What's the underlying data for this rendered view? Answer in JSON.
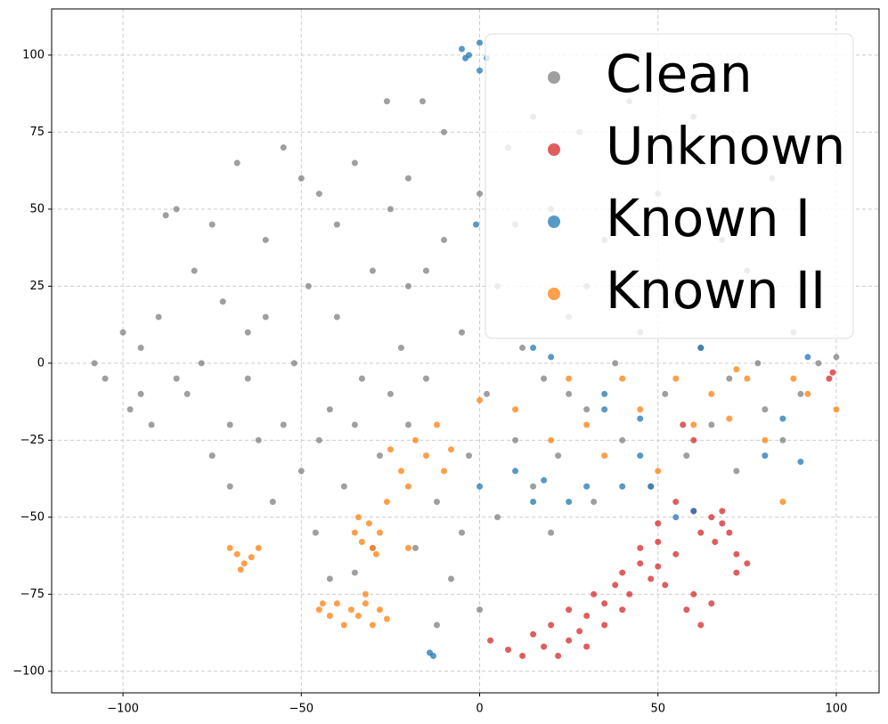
{
  "chart_data": {
    "type": "scatter",
    "xlim": [
      -120,
      112
    ],
    "ylim": [
      -107,
      115
    ],
    "xticks": [
      {
        "value": -100,
        "label": "−100"
      },
      {
        "value": -50,
        "label": "−50"
      },
      0,
      50,
      100
    ],
    "yticks": [
      {
        "value": -100,
        "label": "−100"
      },
      {
        "value": -75,
        "label": "−75"
      },
      {
        "value": -50,
        "label": "−50"
      },
      {
        "value": -25,
        "label": "−25"
      },
      0,
      25,
      50,
      75,
      100
    ],
    "grid": true,
    "legend": "upper right",
    "series": [
      {
        "name": "Clean",
        "color": "#7f7f7f",
        "x": [
          -108,
          -105,
          -100,
          -98,
          -95,
          -92,
          -90,
          -88,
          -85,
          -82,
          -80,
          -78,
          -75,
          -72,
          -70,
          -68,
          -65,
          -62,
          -60,
          -58,
          -55,
          -52,
          -50,
          -48,
          -46,
          -45,
          -42,
          -40,
          -38,
          -35,
          -33,
          -30,
          -28,
          -26,
          -25,
          -22,
          -20,
          -18,
          -16,
          -15,
          -12,
          -10,
          -8,
          -5,
          -3,
          0,
          0,
          2,
          5,
          5,
          8,
          10,
          12,
          15,
          15,
          18,
          20,
          22,
          25,
          28,
          30,
          32,
          35,
          38,
          40,
          42,
          45,
          48,
          50,
          52,
          55,
          58,
          60,
          62,
          65,
          68,
          70,
          72,
          75,
          78,
          80,
          82,
          85,
          88,
          90,
          95,
          100,
          -95,
          -85,
          -75,
          -70,
          -55,
          -45,
          -40,
          -35,
          -30,
          -25,
          -20,
          -10,
          -5,
          10,
          20,
          25,
          30,
          -60,
          -65,
          -50,
          -20,
          -15,
          -12,
          -42,
          -35
        ],
        "y": [
          0,
          -5,
          10,
          -15,
          5,
          -20,
          15,
          48,
          50,
          -10,
          30,
          0,
          -30,
          20,
          -40,
          65,
          10,
          -25,
          40,
          -45,
          70,
          0,
          -35,
          25,
          -55,
          55,
          -15,
          15,
          -40,
          65,
          -5,
          30,
          -30,
          85,
          50,
          5,
          -20,
          -60,
          85,
          30,
          -45,
          75,
          -70,
          10,
          -30,
          -80,
          55,
          -10,
          -50,
          25,
          70,
          -25,
          5,
          80,
          -40,
          -5,
          50,
          -30,
          15,
          75,
          -15,
          -45,
          40,
          0,
          -25,
          85,
          10,
          -40,
          55,
          -10,
          20,
          -30,
          80,
          5,
          -20,
          40,
          -5,
          -35,
          30,
          0,
          -15,
          60,
          -25,
          10,
          -10,
          0,
          2,
          -10,
          -5,
          45,
          -20,
          -20,
          -25,
          45,
          -20,
          -60,
          -10,
          60,
          40,
          -55,
          45,
          -55,
          -10,
          25,
          15,
          -5,
          60,
          25,
          -5,
          -85,
          -70,
          -68
        ]
      },
      {
        "name": "Unknown",
        "color": "#d62728",
        "x": [
          3,
          8,
          12,
          15,
          18,
          20,
          22,
          25,
          25,
          28,
          30,
          30,
          32,
          35,
          35,
          38,
          40,
          40,
          42,
          45,
          45,
          48,
          50,
          50,
          52,
          55,
          50,
          60,
          62,
          65,
          66,
          68,
          70,
          72,
          72,
          75,
          60,
          58,
          62,
          65,
          68,
          99,
          98,
          55,
          57,
          60
        ],
        "y": [
          -90,
          -93,
          -95,
          -88,
          -92,
          -85,
          -95,
          -90,
          -80,
          -87,
          -82,
          -92,
          -75,
          -85,
          -78,
          -72,
          -80,
          -68,
          -75,
          -65,
          -60,
          -70,
          -58,
          -66,
          -72,
          -62,
          -52,
          -48,
          -55,
          -50,
          -58,
          -48,
          -55,
          -62,
          -68,
          -65,
          -75,
          -80,
          -85,
          -78,
          -52,
          -3,
          -5,
          -45,
          -20,
          -25
        ]
      },
      {
        "name": "Known I",
        "color": "#1f77b4",
        "x": [
          -5,
          -3,
          0,
          2,
          -4,
          0,
          -1,
          15,
          18,
          0,
          10,
          25,
          35,
          45,
          48,
          55,
          60,
          62,
          40,
          80,
          85,
          90,
          92,
          15,
          20,
          -13,
          -14,
          30,
          45,
          35
        ],
        "y": [
          102,
          100,
          104,
          99,
          99,
          95,
          45,
          -45,
          -38,
          -40,
          -35,
          -45,
          -10,
          -18,
          -40,
          -50,
          -48,
          5,
          -40,
          -30,
          -18,
          -32,
          2,
          5,
          2,
          -95,
          -94,
          -40,
          -30,
          -15
        ]
      },
      {
        "name": "Known II",
        "color": "#ff7f0e",
        "x": [
          -68,
          -66,
          -70,
          -67,
          -64,
          -62,
          -45,
          -42,
          -40,
          -38,
          -36,
          -34,
          -32,
          -30,
          -28,
          -26,
          -44,
          -35,
          -33,
          -31,
          -30,
          -28,
          -34,
          -26,
          -22,
          -20,
          -18,
          -15,
          -12,
          -10,
          -8,
          0,
          10,
          25,
          30,
          35,
          40,
          45,
          50,
          55,
          60,
          65,
          70,
          75,
          80,
          85,
          88,
          92,
          100,
          72,
          -32,
          -25,
          20,
          -20,
          -29
        ],
        "y": [
          -62,
          -65,
          -60,
          -67,
          -63,
          -60,
          -80,
          -82,
          -78,
          -85,
          -80,
          -82,
          -78,
          -85,
          -80,
          -83,
          -78,
          -55,
          -58,
          -52,
          -60,
          -55,
          -50,
          -45,
          -35,
          -40,
          -25,
          -30,
          -20,
          -35,
          -28,
          -12,
          -15,
          -5,
          -20,
          -30,
          -5,
          -15,
          -35,
          -5,
          -20,
          -10,
          -18,
          -5,
          -25,
          -45,
          -5,
          -10,
          -15,
          -2,
          -75,
          -28,
          -25,
          -60,
          -62
        ]
      }
    ]
  }
}
